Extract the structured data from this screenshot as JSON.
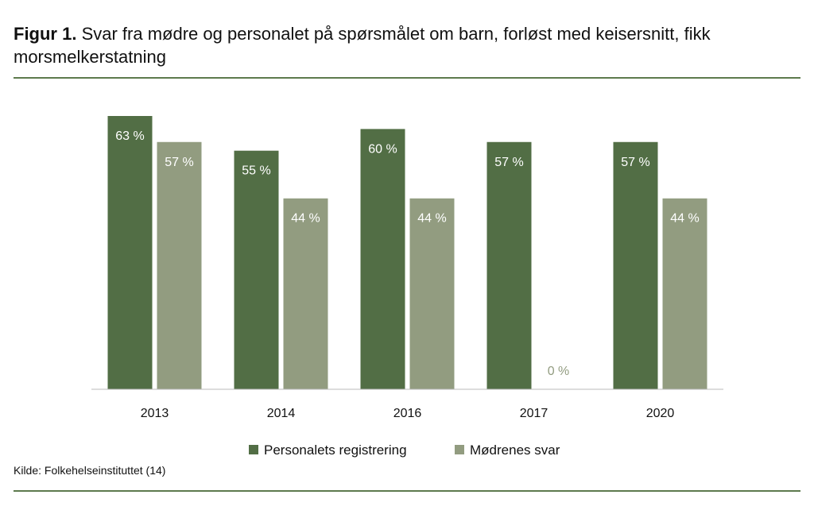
{
  "figure": {
    "label": "Figur 1.",
    "title": "Svar fra mødre og personalet på spørsmålet om barn, forløst med keisersnitt, fikk morsmelkerstatning",
    "source": "Kilde: Folkehelseinstituttet (14)"
  },
  "chart_data": {
    "type": "bar",
    "categories": [
      "2013",
      "2014",
      "2016",
      "2017",
      "2020"
    ],
    "series": [
      {
        "name": "Personalets registrering",
        "values": [
          63,
          55,
          60,
          57,
          57
        ],
        "labels": [
          "63 %",
          "55 %",
          "60 %",
          "57 %",
          "57 %"
        ],
        "color": "#526e45"
      },
      {
        "name": "Mødrenes svar",
        "values": [
          57,
          44,
          44,
          0,
          44
        ],
        "labels": [
          "57 %",
          "44 %",
          "44 %",
          "0 %",
          "44 %"
        ],
        "color": "#929c80"
      }
    ],
    "ylim": [
      0,
      63
    ],
    "grid": false,
    "legend": "bottom",
    "xlabel": "",
    "ylabel": ""
  }
}
